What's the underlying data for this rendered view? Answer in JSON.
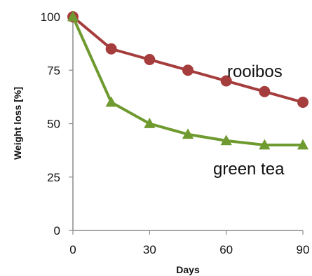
{
  "chart_data": {
    "type": "line",
    "title": "",
    "xlabel": "Days",
    "ylabel": "Weight loss [%]",
    "xlim": [
      0,
      90
    ],
    "ylim": [
      0,
      100
    ],
    "x_ticks": [
      "0",
      "30",
      "60",
      "90"
    ],
    "y_ticks": [
      "0",
      "25",
      "50",
      "75",
      "100"
    ],
    "grid": false,
    "legend": "none",
    "series": [
      {
        "name": "rooibos",
        "color": "#a53d3d",
        "marker": "circle",
        "x": [
          0,
          15,
          30,
          45,
          60,
          75,
          90
        ],
        "values": [
          100,
          85,
          80,
          75,
          70,
          65,
          60
        ]
      },
      {
        "name": "green tea",
        "color": "#6f9a2f",
        "marker": "triangle",
        "x": [
          0,
          15,
          30,
          45,
          60,
          75,
          90
        ],
        "values": [
          100,
          60,
          50,
          45,
          42,
          40,
          40
        ]
      }
    ]
  }
}
